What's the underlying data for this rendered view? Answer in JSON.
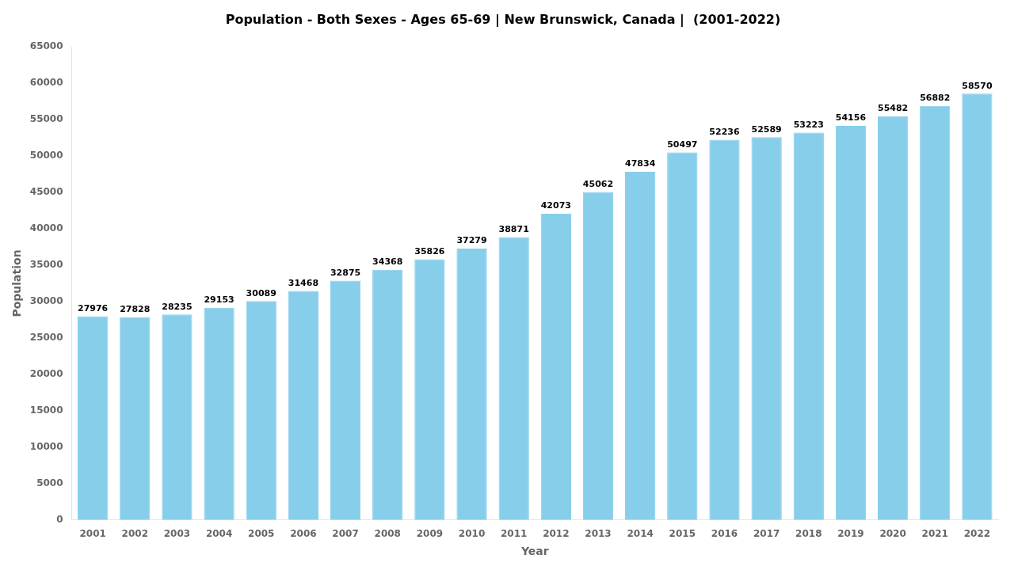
{
  "chart_data": {
    "type": "bar",
    "title": "Population - Both Sexes - Ages 65-69 | New Brunswick, Canada |  (2001-2022)",
    "xlabel": "Year",
    "ylabel": "Population",
    "categories": [
      "2001",
      "2002",
      "2003",
      "2004",
      "2005",
      "2006",
      "2007",
      "2008",
      "2009",
      "2010",
      "2011",
      "2012",
      "2013",
      "2014",
      "2015",
      "2016",
      "2017",
      "2018",
      "2019",
      "2020",
      "2021",
      "2022"
    ],
    "values": [
      27976,
      27828,
      28235,
      29153,
      30089,
      31468,
      32875,
      34368,
      35826,
      37279,
      38871,
      42073,
      45062,
      47834,
      50497,
      52236,
      52589,
      53223,
      54156,
      55482,
      56882,
      58570
    ],
    "color": "#87CEEB",
    "ylim": [
      0,
      65000
    ],
    "yticks": [
      0,
      5000,
      10000,
      15000,
      20000,
      25000,
      30000,
      35000,
      40000,
      45000,
      50000,
      55000,
      60000,
      65000
    ],
    "grid": false,
    "legend": false,
    "data_labels": true
  }
}
